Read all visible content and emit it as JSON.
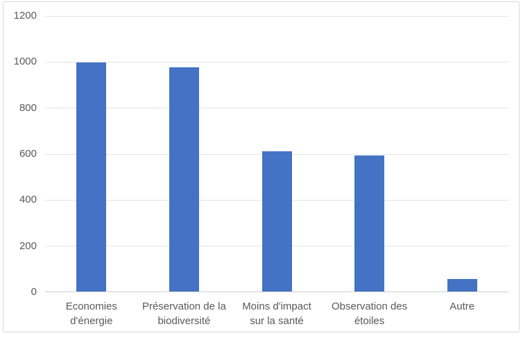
{
  "chart_data": {
    "type": "bar",
    "title": "",
    "categories": [
      "Economies d'énergie",
      "Préservation de la biodiversité",
      "Moins d'impact sur la santé",
      "Observation des étoiles",
      "Autre"
    ],
    "category_lines": [
      [
        "Economies",
        "d'énergie"
      ],
      [
        "Préservation de la",
        "biodiversité"
      ],
      [
        "Moins d'impact",
        "sur la santé"
      ],
      [
        "Observation des",
        "étoiles"
      ],
      [
        "Autre"
      ]
    ],
    "values": [
      995,
      975,
      610,
      590,
      55
    ],
    "xlabel": "",
    "ylabel": "",
    "ylim": [
      0,
      1200
    ],
    "ytick_interval": 200,
    "yticks": [
      "0",
      "200",
      "400",
      "600",
      "800",
      "1000",
      "1200"
    ],
    "grid": true,
    "legend": "none",
    "colors": {
      "bar_fill": "#4472C4",
      "gridline": "#E4E4E4",
      "axis_line": "#CFCFCF",
      "tick_label": "#595959",
      "chart_border": "#D9D9D9",
      "background": "#FFFFFF"
    }
  }
}
